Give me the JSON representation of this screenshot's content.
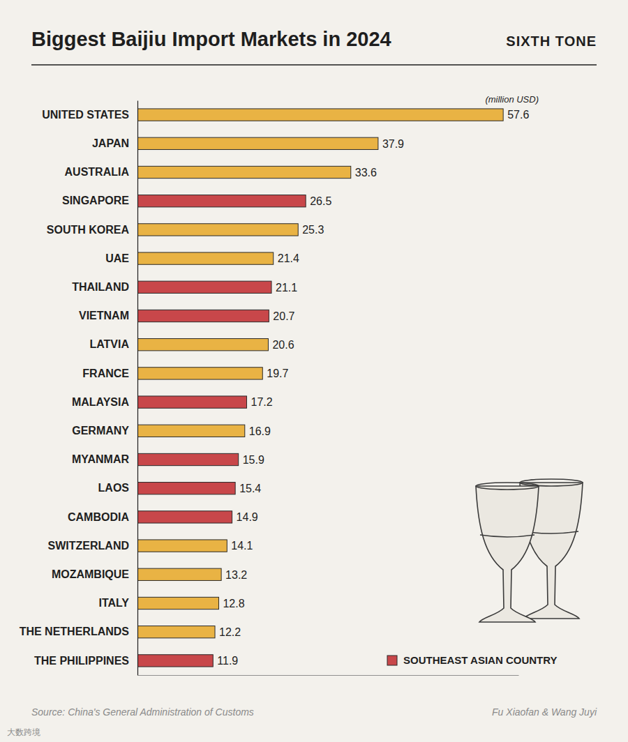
{
  "chart_data": {
    "type": "bar",
    "orientation": "horizontal",
    "title": "Biggest Baijiu Import Markets in 2024",
    "brand": "SIXTH TONE",
    "xlabel": "(million USD)",
    "categories": [
      "UNITED STATES",
      "JAPAN",
      "AUSTRALIA",
      "SINGAPORE",
      "SOUTH KOREA",
      "UAE",
      "THAILAND",
      "VIETNAM",
      "LATVIA",
      "FRANCE",
      "MALAYSIA",
      "GERMANY",
      "MYANMAR",
      "LAOS",
      "CAMBODIA",
      "SWITZERLAND",
      "MOZAMBIQUE",
      "ITALY",
      "THE NETHERLANDS",
      "THE PHILIPPINES"
    ],
    "values": [
      57.6,
      37.9,
      33.6,
      26.5,
      25.3,
      21.4,
      21.1,
      20.7,
      20.6,
      19.7,
      17.2,
      16.9,
      15.9,
      15.4,
      14.9,
      14.1,
      13.2,
      12.8,
      12.2,
      11.9
    ],
    "colors": [
      "#e9b344",
      "#e9b344",
      "#e9b344",
      "#c8474a",
      "#e9b344",
      "#e9b344",
      "#c8474a",
      "#c8474a",
      "#e9b344",
      "#e9b344",
      "#c8474a",
      "#e9b344",
      "#c8474a",
      "#c8474a",
      "#c8474a",
      "#e9b344",
      "#e9b344",
      "#e9b344",
      "#e9b344",
      "#c8474a"
    ],
    "xlim": [
      0,
      60
    ],
    "tick_labels": "y",
    "grid": false,
    "data_labels": true,
    "legend": "bottom-right",
    "legend_entries": [
      {
        "name": "SOUTHEAST ASIAN COUNTRY",
        "color": "#c8474a"
      }
    ],
    "source": "Source: China's General Administration of Customs",
    "credit": "Fu Xiaofan & Wang Juyi",
    "watermark": "大数跨境"
  }
}
